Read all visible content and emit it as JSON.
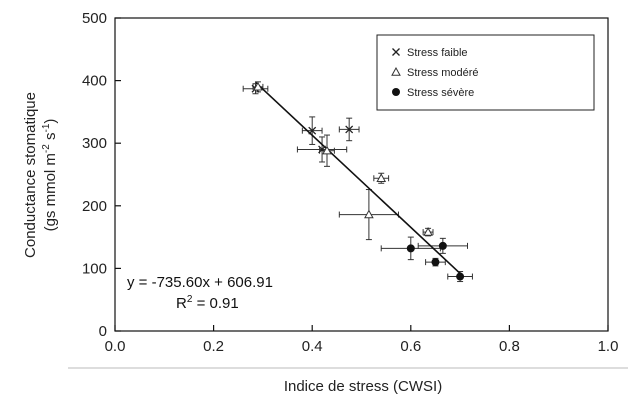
{
  "chart_data": {
    "type": "scatter",
    "title": "",
    "xlabel": "Indice de stress (CWSI)",
    "ylabel": {
      "line1": "Conductance stomatique",
      "line2_prefix": "(gs mmol m",
      "line2_sup1": "-2",
      "line2_mid": " s",
      "line2_sup2": "-1",
      "line2_suffix": ")"
    },
    "xlim": [
      0.0,
      1.0
    ],
    "ylim": [
      0,
      500
    ],
    "x_ticks": [
      0.0,
      0.2,
      0.4,
      0.6,
      0.8,
      1.0
    ],
    "x_tick_labels": [
      "0.0",
      "0.2",
      "0.4",
      "0.6",
      "0.8",
      "1.0"
    ],
    "y_ticks": [
      0,
      100,
      200,
      300,
      400,
      500
    ],
    "y_tick_labels": [
      "0",
      "100",
      "200",
      "300",
      "400",
      "500"
    ],
    "grid": false,
    "legend_position": "top-right",
    "series": [
      {
        "name": "Stress faible",
        "marker": "x",
        "points": [
          {
            "x": 0.285,
            "y": 387,
            "xerr": 0.025,
            "yerr": 8
          },
          {
            "x": 0.4,
            "y": 320,
            "xerr": 0.02,
            "yerr": 22
          },
          {
            "x": 0.42,
            "y": 290,
            "xerr": 0.05,
            "yerr": 20
          },
          {
            "x": 0.475,
            "y": 322,
            "xerr": 0.02,
            "yerr": 18
          }
        ]
      },
      {
        "name": "Stress modéré",
        "marker": "triangle",
        "points": [
          {
            "x": 0.29,
            "y": 390,
            "xerr": 0.01,
            "yerr": 8
          },
          {
            "x": 0.43,
            "y": 288,
            "xerr": 0.015,
            "yerr": 25
          },
          {
            "x": 0.54,
            "y": 244,
            "xerr": 0.015,
            "yerr": 8
          },
          {
            "x": 0.515,
            "y": 186,
            "xerr": 0.06,
            "yerr": 40
          },
          {
            "x": 0.635,
            "y": 158,
            "xerr": 0.01,
            "yerr": 6
          }
        ]
      },
      {
        "name": "Stress sévère",
        "marker": "circle",
        "points": [
          {
            "x": 0.6,
            "y": 132,
            "xerr": 0.06,
            "yerr": 18
          },
          {
            "x": 0.665,
            "y": 136,
            "xerr": 0.05,
            "yerr": 12
          },
          {
            "x": 0.65,
            "y": 110,
            "xerr": 0.02,
            "yerr": 6
          },
          {
            "x": 0.7,
            "y": 87,
            "xerr": 0.025,
            "yerr": 8
          }
        ]
      }
    ],
    "regression": {
      "slope": -735.6,
      "intercept": 606.91,
      "x_range": [
        0.285,
        0.7
      ],
      "equation_label": "y = -735.60x + 606.91",
      "r2_prefix": "R",
      "r2_sup": "2",
      "r2_suffix": " = 0.91"
    }
  }
}
